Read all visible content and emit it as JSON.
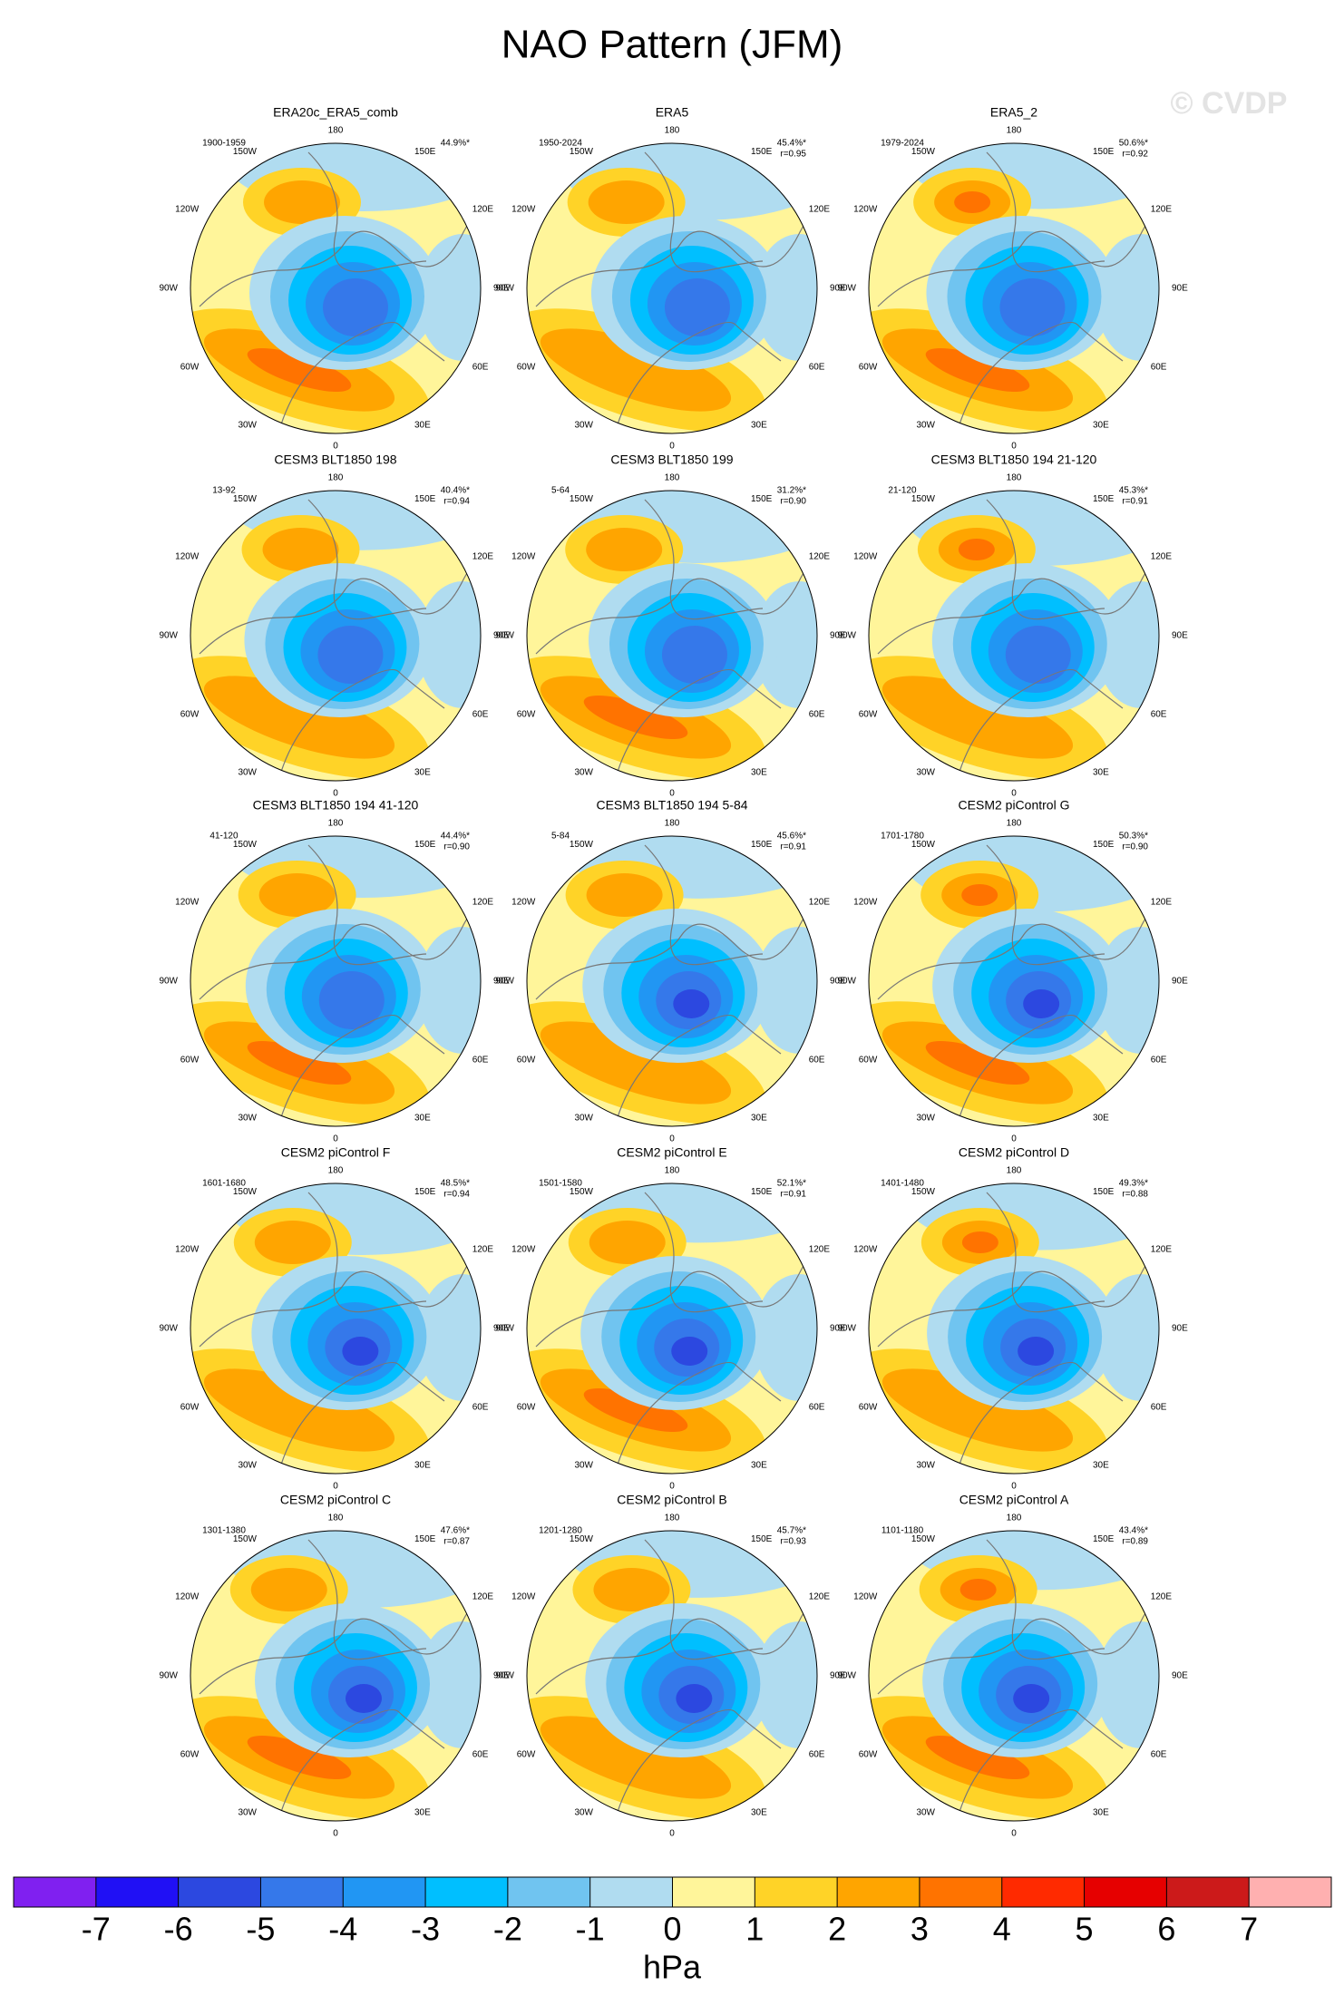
{
  "title": "NAO Pattern (JFM)",
  "watermark": "© CVDP",
  "longitude_labels": [
    "0",
    "30E",
    "60E",
    "90E",
    "120E",
    "150E",
    "180",
    "150W",
    "120W",
    "90W",
    "60W",
    "30W"
  ],
  "panels": [
    {
      "title": "ERA20c_ERA5_comb",
      "period": "1900-1959",
      "variance": "44.9%*"
    },
    {
      "title": "ERA5",
      "period": "1950-2024",
      "variance": "45.4%*",
      "correlation": "r=0.95"
    },
    {
      "title": "ERA5_2",
      "period": "1979-2024",
      "variance": "50.6%*",
      "correlation": "r=0.92"
    },
    {
      "title": "CESM3 BLT1850 198",
      "period": "13-92",
      "variance": "40.4%*",
      "correlation": "r=0.94"
    },
    {
      "title": "CESM3 BLT1850 199",
      "period": "5-64",
      "variance": "31.2%*",
      "correlation": "r=0.90"
    },
    {
      "title": "CESM3 BLT1850 194 21-120",
      "period": "21-120",
      "variance": "45.3%*",
      "correlation": "r=0.91"
    },
    {
      "title": "CESM3 BLT1850 194 41-120",
      "period": "41-120",
      "variance": "44.4%*",
      "correlation": "r=0.90"
    },
    {
      "title": "CESM3 BLT1850 194 5-84",
      "period": "5-84",
      "variance": "45.6%*",
      "correlation": "r=0.91"
    },
    {
      "title": "CESM2 piControl G",
      "period": "1701-1780",
      "variance": "50.3%*",
      "correlation": "r=0.90"
    },
    {
      "title": "CESM2 piControl F",
      "period": "1601-1680",
      "variance": "48.5%*",
      "correlation": "r=0.94"
    },
    {
      "title": "CESM2 piControl E",
      "period": "1501-1580",
      "variance": "52.1%*",
      "correlation": "r=0.91"
    },
    {
      "title": "CESM2 piControl D",
      "period": "1401-1480",
      "variance": "49.3%*",
      "correlation": "r=0.88"
    },
    {
      "title": "CESM2 piControl C",
      "period": "1301-1380",
      "variance": "47.6%*",
      "correlation": "r=0.87"
    },
    {
      "title": "CESM2 piControl B",
      "period": "1201-1280",
      "variance": "45.7%*",
      "correlation": "r=0.93"
    },
    {
      "title": "CESM2 piControl A",
      "period": "1101-1180",
      "variance": "43.4%*",
      "correlation": "r=0.89"
    }
  ],
  "colorbar": {
    "levels": [
      -7,
      -6,
      -5,
      -4,
      -3,
      -2,
      -1,
      0,
      1,
      2,
      3,
      4,
      5,
      6,
      7
    ],
    "colors": [
      "#8020f0",
      "#2010f5",
      "#2c48e0",
      "#3578ea",
      "#2196f3",
      "#00bfff",
      "#70c4f0",
      "#b0dcf0",
      "#fff59a",
      "#ffd327",
      "#ffa500",
      "#ff7300",
      "#ff2a00",
      "#e60000",
      "#cc1a1a",
      "#ffb0b0"
    ],
    "unit": "hPa"
  }
}
